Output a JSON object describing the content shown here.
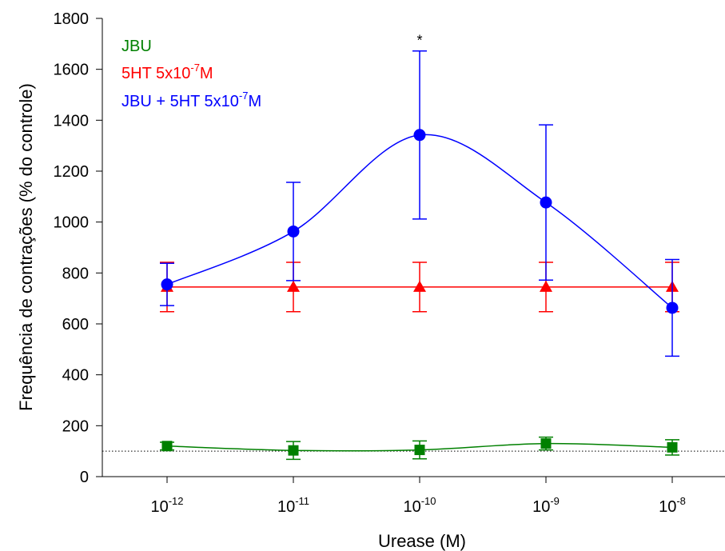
{
  "chart_data": {
    "type": "line",
    "xlabel": "Urease (M)",
    "ylabel": "Frequência de contrações (% do controle)",
    "x_scale": "log",
    "x_ticks": [
      {
        "base": "10",
        "exp": "-12"
      },
      {
        "base": "10",
        "exp": "-11"
      },
      {
        "base": "10",
        "exp": "-10"
      },
      {
        "base": "10",
        "exp": "-9"
      },
      {
        "base": "10",
        "exp": "-8"
      }
    ],
    "x_values": [
      1e-12,
      1e-11,
      1e-10,
      1e-09,
      1e-08
    ],
    "ylim": [
      0,
      1800
    ],
    "y_ticks": [
      "0",
      "200",
      "400",
      "600",
      "800",
      "1000",
      "1200",
      "1400",
      "1600",
      "1800"
    ],
    "reference_line": {
      "y": 100,
      "style": "dotted"
    },
    "annotations": [
      {
        "text": "*",
        "x": 1e-10,
        "y": 1720
      }
    ],
    "series": [
      {
        "name": "JBU",
        "legend": {
          "text": "JBU",
          "sup": "",
          "suffix": ""
        },
        "color": "#008000",
        "marker": "square",
        "values": [
          120,
          103,
          105,
          130,
          115
        ],
        "errors": [
          15,
          35,
          35,
          25,
          30
        ]
      },
      {
        "name": "5HT 5x10-7M",
        "legend": {
          "text": "5HT 5x10",
          "sup": "-7",
          "suffix": "M"
        },
        "color": "#ff0000",
        "marker": "triangle",
        "values": [
          745,
          745,
          745,
          745,
          745
        ],
        "errors": [
          97,
          97,
          97,
          97,
          97
        ]
      },
      {
        "name": "JBU + 5HT 5x10-7M",
        "legend": {
          "text": "JBU + 5HT 5x10",
          "sup": "-7",
          "suffix": "M"
        },
        "color": "#0000ff",
        "marker": "circle",
        "values": [
          755,
          963,
          1342,
          1077,
          663
        ],
        "errors": [
          83,
          193,
          330,
          305,
          190
        ]
      }
    ]
  }
}
